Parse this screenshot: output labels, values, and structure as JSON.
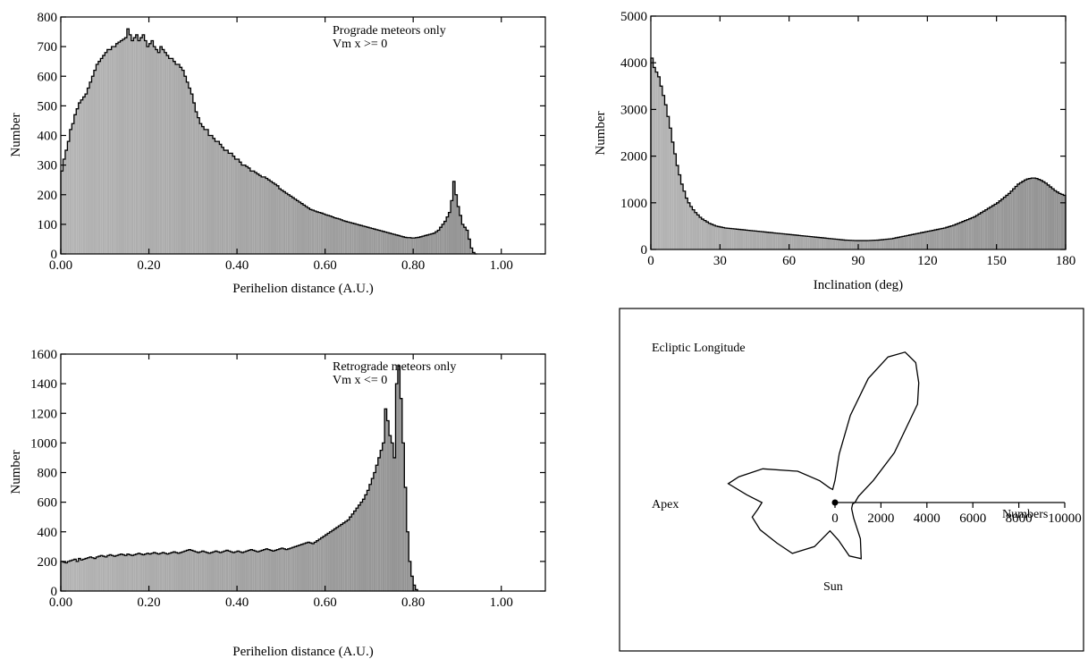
{
  "chart_data": [
    {
      "type": "bar",
      "id": "prograde",
      "xlabel": "Perihelion distance  (A.U.)",
      "ylabel": "Number",
      "xlim": [
        0,
        1.1
      ],
      "ylim": [
        0,
        800
      ],
      "xticks": [
        "0.00",
        "0.20",
        "0.40",
        "0.60",
        "0.80",
        "1.00"
      ],
      "xtick_values": [
        0,
        0.2,
        0.4,
        0.6,
        0.8,
        1.0
      ],
      "yticks": [
        "0",
        "100",
        "200",
        "300",
        "400",
        "500",
        "600",
        "700",
        "800"
      ],
      "ytick_values": [
        0,
        100,
        200,
        300,
        400,
        500,
        600,
        700,
        800
      ],
      "annotation": [
        "Prograde meteors only",
        "Vm x >= 0"
      ],
      "bin_width": 0.005,
      "x_start": 0.0,
      "values": [
        280,
        320,
        350,
        380,
        420,
        440,
        470,
        490,
        510,
        520,
        530,
        540,
        560,
        580,
        600,
        620,
        640,
        650,
        660,
        670,
        680,
        690,
        690,
        700,
        700,
        710,
        715,
        720,
        725,
        730,
        760,
        740,
        720,
        730,
        740,
        720,
        730,
        740,
        720,
        700,
        710,
        720,
        700,
        690,
        680,
        700,
        690,
        680,
        670,
        660,
        660,
        650,
        640,
        640,
        630,
        620,
        600,
        580,
        560,
        540,
        510,
        480,
        460,
        440,
        430,
        420,
        420,
        400,
        400,
        390,
        380,
        380,
        370,
        360,
        350,
        350,
        340,
        340,
        330,
        320,
        320,
        310,
        300,
        300,
        295,
        290,
        280,
        280,
        275,
        270,
        265,
        260,
        260,
        255,
        250,
        245,
        240,
        235,
        230,
        220,
        215,
        210,
        205,
        200,
        195,
        190,
        185,
        180,
        175,
        170,
        165,
        160,
        155,
        150,
        148,
        145,
        142,
        140,
        138,
        135,
        132,
        130,
        128,
        125,
        122,
        120,
        118,
        115,
        112,
        110,
        108,
        106,
        104,
        102,
        100,
        98,
        96,
        94,
        92,
        90,
        88,
        86,
        84,
        82,
        80,
        78,
        76,
        74,
        72,
        70,
        68,
        66,
        64,
        62,
        60,
        58,
        56,
        55,
        55,
        54,
        54,
        55,
        56,
        58,
        60,
        62,
        64,
        66,
        68,
        70,
        75,
        80,
        90,
        100,
        110,
        125,
        140,
        180,
        245,
        200,
        160,
        130,
        100,
        90,
        80,
        50,
        20,
        5,
        0
      ]
    },
    {
      "type": "bar",
      "id": "inclination",
      "xlabel": "Inclination  (deg)",
      "ylabel": "Number",
      "xlim": [
        0,
        180
      ],
      "ylim": [
        0,
        5000
      ],
      "xticks": [
        "0",
        "30",
        "60",
        "90",
        "120",
        "150",
        "180"
      ],
      "xtick_values": [
        0,
        30,
        60,
        90,
        120,
        150,
        180
      ],
      "yticks": [
        "0",
        "1000",
        "2000",
        "3000",
        "4000",
        "5000"
      ],
      "ytick_values": [
        0,
        1000,
        2000,
        3000,
        4000,
        5000
      ],
      "bin_width": 1,
      "x_start": 0,
      "values": [
        4100,
        3900,
        3800,
        3700,
        3500,
        3300,
        3100,
        2850,
        2600,
        2300,
        2050,
        1800,
        1600,
        1400,
        1250,
        1100,
        1000,
        920,
        850,
        790,
        740,
        690,
        650,
        620,
        590,
        560,
        540,
        520,
        500,
        490,
        480,
        470,
        460,
        455,
        450,
        445,
        440,
        435,
        430,
        425,
        420,
        415,
        410,
        405,
        400,
        395,
        390,
        385,
        380,
        375,
        370,
        365,
        360,
        355,
        350,
        345,
        340,
        335,
        330,
        325,
        320,
        315,
        310,
        305,
        300,
        295,
        290,
        285,
        280,
        275,
        270,
        265,
        260,
        255,
        250,
        245,
        240,
        235,
        230,
        225,
        220,
        215,
        210,
        205,
        200,
        198,
        196,
        194,
        192,
        190,
        190,
        190,
        190,
        190,
        192,
        194,
        196,
        198,
        200,
        205,
        210,
        215,
        220,
        225,
        230,
        240,
        250,
        260,
        270,
        280,
        290,
        300,
        310,
        320,
        330,
        340,
        350,
        360,
        370,
        380,
        390,
        400,
        410,
        420,
        430,
        440,
        450,
        460,
        475,
        490,
        505,
        520,
        540,
        560,
        580,
        600,
        620,
        640,
        660,
        680,
        700,
        730,
        760,
        790,
        820,
        850,
        880,
        910,
        940,
        970,
        1000,
        1040,
        1080,
        1120,
        1160,
        1200,
        1250,
        1300,
        1350,
        1400,
        1430,
        1460,
        1490,
        1510,
        1520,
        1530,
        1530,
        1520,
        1500,
        1480,
        1450,
        1420,
        1380,
        1340,
        1300,
        1260,
        1230,
        1200,
        1180,
        1160
      ]
    },
    {
      "type": "bar",
      "id": "retrograde",
      "xlabel": "Perihelion distance  (A.U.)",
      "ylabel": "Number",
      "xlim": [
        0,
        1.1
      ],
      "ylim": [
        0,
        1600
      ],
      "xticks": [
        "0.00",
        "0.20",
        "0.40",
        "0.60",
        "0.80",
        "1.00"
      ],
      "xtick_values": [
        0,
        0.2,
        0.4,
        0.6,
        0.8,
        1.0
      ],
      "yticks": [
        "0",
        "200",
        "400",
        "600",
        "800",
        "1000",
        "1200",
        "1400",
        "1600"
      ],
      "ytick_values": [
        0,
        200,
        400,
        600,
        800,
        1000,
        1200,
        1400,
        1600
      ],
      "annotation": [
        "Retrograde meteors only",
        "Vm x <= 0"
      ],
      "bin_width": 0.005,
      "x_start": 0.0,
      "values": [
        200,
        195,
        190,
        200,
        205,
        210,
        215,
        200,
        220,
        210,
        215,
        220,
        225,
        230,
        225,
        220,
        230,
        235,
        240,
        235,
        230,
        240,
        245,
        240,
        235,
        240,
        245,
        250,
        245,
        240,
        250,
        245,
        240,
        245,
        250,
        255,
        250,
        245,
        250,
        255,
        250,
        255,
        260,
        255,
        250,
        255,
        260,
        255,
        250,
        255,
        260,
        265,
        260,
        255,
        260,
        265,
        270,
        275,
        280,
        275,
        270,
        265,
        260,
        265,
        270,
        265,
        260,
        255,
        260,
        265,
        270,
        265,
        260,
        265,
        270,
        275,
        270,
        265,
        260,
        265,
        270,
        265,
        260,
        265,
        270,
        275,
        280,
        275,
        270,
        265,
        270,
        275,
        280,
        285,
        280,
        275,
        270,
        275,
        280,
        285,
        290,
        285,
        280,
        285,
        290,
        295,
        300,
        305,
        310,
        315,
        320,
        325,
        330,
        325,
        320,
        330,
        340,
        350,
        360,
        370,
        380,
        390,
        400,
        410,
        420,
        430,
        440,
        450,
        460,
        470,
        480,
        500,
        520,
        540,
        560,
        580,
        600,
        620,
        650,
        680,
        720,
        760,
        800,
        850,
        900,
        950,
        1000,
        1230,
        1150,
        1050,
        1000,
        900,
        1400,
        1520,
        1300,
        1000,
        700,
        400,
        200,
        100,
        40,
        10
      ]
    },
    {
      "type": "polar",
      "id": "ecliptic",
      "title": "Ecliptic Longitude",
      "labels": {
        "apex": "Apex",
        "sun": "Sun",
        "axis": "Numbers"
      },
      "axis_ticks": [
        "0",
        "2000",
        "4000",
        "6000",
        "8000",
        "10000"
      ],
      "axis_tick_values": [
        0,
        2000,
        4000,
        6000,
        8000,
        10000
      ],
      "radius_max": 10000,
      "profile_angle_deg": [
        0,
        15,
        30,
        40,
        50,
        55,
        60,
        65,
        70,
        75,
        80,
        85,
        90,
        100,
        110,
        125,
        140,
        155,
        165,
        170,
        175,
        180,
        185,
        190,
        200,
        215,
        230,
        245,
        260,
        275,
        285,
        295,
        305,
        320,
        340,
        355
      ],
      "profile_value": [
        900,
        1100,
        2000,
        3500,
        5800,
        6600,
        7300,
        7500,
        7000,
        5800,
        4000,
        2200,
        1000,
        600,
        700,
        1200,
        2200,
        3600,
        4500,
        4900,
        4000,
        3300,
        3500,
        3800,
        3600,
        3200,
        3000,
        2200,
        1300,
        1700,
        2500,
        2800,
        2000,
        1100,
        800,
        800
      ]
    }
  ]
}
